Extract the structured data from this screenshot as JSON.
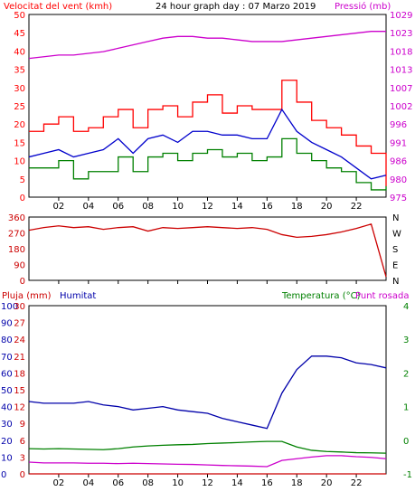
{
  "colors": {
    "wind_gust": "#ff0000",
    "wind_avg": "#0000cc",
    "wind_min": "#008000",
    "pressure": "#cc00cc",
    "direction": "#cc0000",
    "rain": "#cc0000",
    "humidity": "#0000aa",
    "temperature": "#008000",
    "dewpoint": "#cc00cc",
    "axis": "#000000"
  },
  "chart_data": [
    {
      "type": "line",
      "title": "24 hour graph day : 07 Marzo 2019",
      "ylabel_left": "Velocitat del vent (kmh)",
      "ylabel_right": "Pressió (mb)",
      "x_ticks": [
        "02",
        "04",
        "06",
        "08",
        "10",
        "12",
        "14",
        "16",
        "18",
        "20",
        "22"
      ],
      "y_left_ticks": [
        0,
        5,
        10,
        15,
        20,
        25,
        30,
        35,
        40,
        45,
        50
      ],
      "y_right_ticks": [
        975,
        980,
        986,
        991,
        996,
        1002,
        1007,
        1013,
        1018,
        1023,
        1029
      ],
      "ylim_left": [
        0,
        50
      ],
      "x": [
        0,
        1,
        2,
        3,
        4,
        5,
        6,
        7,
        8,
        9,
        10,
        11,
        12,
        13,
        14,
        15,
        16,
        17,
        18,
        19,
        20,
        21,
        22,
        23,
        24
      ],
      "series": [
        {
          "key": "gust",
          "values": [
            18,
            20,
            22,
            18,
            19,
            22,
            24,
            19,
            24,
            25,
            22,
            26,
            28,
            23,
            25,
            24,
            24,
            32,
            26,
            21,
            19,
            17,
            14,
            12,
            3
          ]
        },
        {
          "key": "avg",
          "values": [
            11,
            12,
            13,
            11,
            12,
            13,
            16,
            12,
            16,
            17,
            15,
            18,
            18,
            17,
            17,
            16,
            16,
            24,
            18,
            15,
            13,
            11,
            8,
            5,
            6
          ]
        },
        {
          "key": "min",
          "values": [
            8,
            8,
            10,
            5,
            7,
            7,
            11,
            7,
            11,
            12,
            10,
            12,
            13,
            11,
            12,
            10,
            11,
            16,
            12,
            10,
            8,
            7,
            4,
            2,
            3
          ]
        },
        {
          "key": "pressure",
          "values": [
            1016,
            1016.5,
            1017,
            1017,
            1017.5,
            1018,
            1019,
            1020,
            1021,
            1022,
            1022.5,
            1022.5,
            1022,
            1022,
            1021.5,
            1021,
            1021,
            1021,
            1021.5,
            1022,
            1022.5,
            1023,
            1023.5,
            1024,
            1024
          ]
        }
      ]
    },
    {
      "type": "line",
      "y_left_ticks": [
        0,
        90,
        180,
        270,
        360
      ],
      "y_right_ticks": [
        "N",
        "W",
        "S",
        "E",
        "N"
      ],
      "ylim": [
        0,
        360
      ],
      "x": [
        0,
        1,
        2,
        3,
        4,
        5,
        6,
        7,
        8,
        9,
        10,
        11,
        12,
        13,
        14,
        15,
        16,
        17,
        18,
        19,
        20,
        21,
        22,
        23,
        24
      ],
      "series": [
        {
          "key": "direction",
          "values": [
            285,
            300,
            310,
            300,
            305,
            290,
            300,
            305,
            280,
            300,
            295,
            300,
            305,
            300,
            295,
            300,
            290,
            260,
            245,
            250,
            260,
            275,
            295,
            320,
            20
          ]
        }
      ]
    },
    {
      "type": "line",
      "labels": {
        "rain": "Pluja (mm)",
        "humidity": "Humitat",
        "temperature": "Temperatura (°C)",
        "dewpoint": "Punt rosada"
      },
      "y_hum_ticks": [
        0,
        10,
        20,
        30,
        40,
        50,
        60,
        70,
        80,
        90,
        100
      ],
      "y_rain_ticks": [
        0,
        3,
        6,
        9,
        12,
        15,
        18,
        21,
        24,
        27,
        30
      ],
      "y_right_ticks": [
        4,
        3,
        2,
        1,
        0,
        -1
      ],
      "ylim_hum": [
        0,
        100
      ],
      "x": [
        0,
        1,
        2,
        3,
        4,
        5,
        6,
        7,
        8,
        9,
        10,
        11,
        12,
        13,
        14,
        15,
        16,
        17,
        18,
        19,
        20,
        21,
        22,
        23,
        24
      ],
      "series": [
        {
          "key": "humidity",
          "values": [
            43,
            42,
            42,
            42,
            43,
            41,
            40,
            38,
            39,
            40,
            38,
            37,
            36,
            33,
            31,
            29,
            27,
            48,
            62,
            70,
            70,
            69,
            66,
            65,
            63
          ]
        },
        {
          "key": "temperature",
          "values": [
            15,
            14.8,
            15,
            14.8,
            14.6,
            14.4,
            15,
            16,
            16.6,
            17,
            17.3,
            17.5,
            18,
            18.3,
            18.6,
            19,
            19.3,
            19.3,
            16,
            14,
            13.3,
            13,
            12.6,
            12.5,
            12.3
          ]
        },
        {
          "key": "dewpoint",
          "values": [
            7,
            6.5,
            6.5,
            6.5,
            6.3,
            6.3,
            6.1,
            6.3,
            6.1,
            5.9,
            5.7,
            5.6,
            5.3,
            5.0,
            4.8,
            4.6,
            4.3,
            8,
            9,
            10,
            10.8,
            10.8,
            10.2,
            9.8,
            9.0
          ]
        },
        {
          "key": "rain",
          "values": [
            0,
            0,
            0,
            0,
            0,
            0,
            0,
            0,
            0,
            0,
            0,
            0,
            0,
            0,
            0,
            0,
            0,
            0,
            0,
            0,
            0,
            0,
            0,
            0,
            0
          ]
        }
      ]
    }
  ]
}
